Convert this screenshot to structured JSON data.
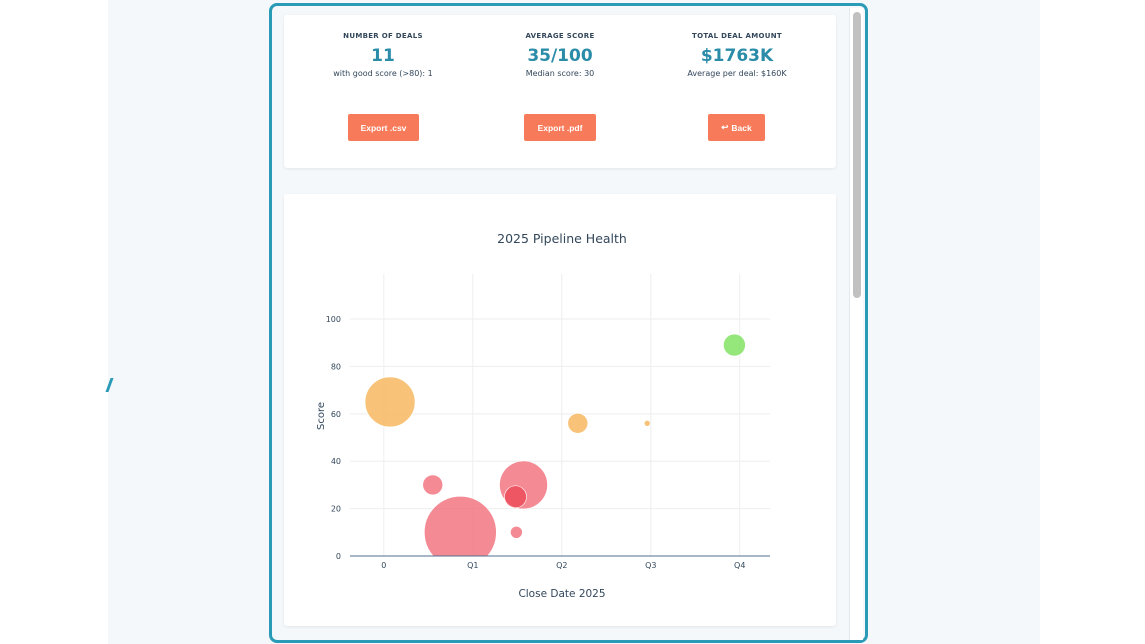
{
  "kpis": [
    {
      "label": "NUMBER OF DEALS",
      "value": "11",
      "sub": "with good score (>80): 1"
    },
    {
      "label": "AVERAGE SCORE",
      "value": "35/100",
      "sub": "Median score: 30"
    },
    {
      "label": "TOTAL DEAL AMOUNT",
      "value": "$1763K",
      "sub": "Average per deal: $160K"
    }
  ],
  "buttons": {
    "csv": "Export .csv",
    "pdf": "Export .pdf",
    "back": "Back",
    "back_icon": "return-arrow-icon"
  },
  "colors": {
    "accent": "#2a8ca8",
    "button": "#f77b5a",
    "low": "#f0707c",
    "mid": "#f7b65a",
    "high": "#7ee25e"
  },
  "chart_data": {
    "type": "scatter",
    "title": "2025 Pipeline Health",
    "xlabel": "Close Date 2025",
    "ylabel": "Score",
    "xticks": [
      {
        "v": 0,
        "label": "0"
      },
      {
        "v": 1,
        "label": "Q1"
      },
      {
        "v": 2,
        "label": "Q2"
      },
      {
        "v": 3,
        "label": "Q3"
      },
      {
        "v": 4,
        "label": "Q4"
      }
    ],
    "yticks": [
      0,
      20,
      40,
      60,
      80,
      100
    ],
    "xlim": [
      -0.38,
      4.34
    ],
    "ylim": [
      0,
      119
    ],
    "grid": true,
    "points": [
      {
        "x": 0.86,
        "y": 10,
        "size": 36,
        "color": "#f0707c"
      },
      {
        "x": 0.07,
        "y": 65,
        "size": 25,
        "color": "#f7b65a"
      },
      {
        "x": 1.57,
        "y": 30,
        "size": 24,
        "color": "#f0707c"
      },
      {
        "x": 0.55,
        "y": 30,
        "size": 10,
        "color": "#f0707c"
      },
      {
        "x": 1.48,
        "y": 25,
        "size": 11,
        "color": "#ee4a58"
      },
      {
        "x": 1.49,
        "y": 10,
        "size": 6,
        "color": "#f0707c"
      },
      {
        "x": 2.18,
        "y": 56,
        "size": 10,
        "color": "#f7b65a"
      },
      {
        "x": 2.96,
        "y": 56,
        "size": 3,
        "color": "#f7b65a"
      },
      {
        "x": 3.94,
        "y": 89,
        "size": 11,
        "color": "#7ee25e"
      }
    ]
  }
}
